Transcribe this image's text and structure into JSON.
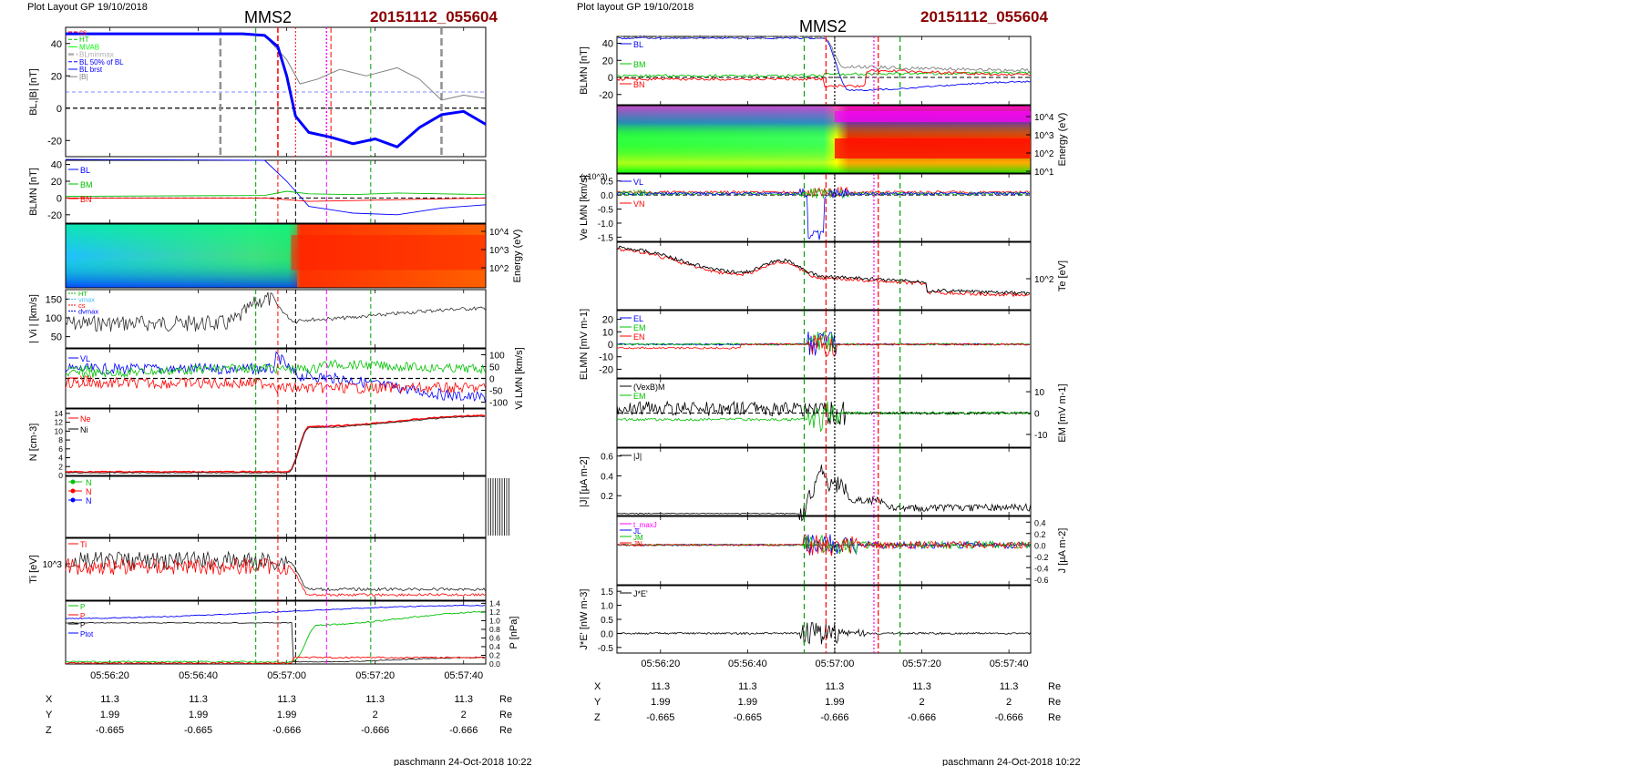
{
  "left": {
    "header": "Plot Layout GP 19/10/2018",
    "spacecraft": "MMS2",
    "event_id": "20151112_055604",
    "footer": "paschmann 24-Oct-2018 10:22",
    "time_ticks": [
      "05:56:20",
      "05:56:40",
      "05:57:00",
      "05:57:20",
      "05:57:40"
    ],
    "ephemeris": [
      {
        "label": "X",
        "values": [
          "11.3",
          "11.3",
          "11.3",
          "11.3",
          "11.3"
        ],
        "unit": "Re"
      },
      {
        "label": "Y",
        "values": [
          "1.99",
          "1.99",
          "1.99",
          "2",
          "2"
        ],
        "unit": "Re"
      },
      {
        "label": "Z",
        "values": [
          "-0.665",
          "-0.665",
          "-0.666",
          "-0.666",
          "-0.666"
        ],
        "unit": "Re"
      }
    ]
  },
  "right": {
    "header": "Plot layout GP 19/10/2018",
    "spacecraft": "MMS2",
    "event_id": "20151112_055604",
    "footer": "paschmann 24-Oct-2018 10:22",
    "time_ticks": [
      "05:56:20",
      "05:56:40",
      "05:57:00",
      "05:57:20",
      "05:57:40"
    ],
    "ephemeris": [
      {
        "label": "X",
        "values": [
          "11.3",
          "11.3",
          "11.3",
          "11.3",
          "11.3"
        ],
        "unit": "Re"
      },
      {
        "label": "Y",
        "values": [
          "1.99",
          "1.99",
          "1.99",
          "2",
          "2"
        ],
        "unit": "Re"
      },
      {
        "label": "Z",
        "values": [
          "-0.665",
          "-0.665",
          "-0.666",
          "-0.666",
          "-0.666"
        ],
        "unit": "Re"
      }
    ]
  },
  "colors": {
    "bl": "#0000ff",
    "bm": "#00c000",
    "bn": "#ff0000",
    "btot": "#000000",
    "title_red": "#8b0000",
    "magenta": "#ff00ff"
  },
  "chart_data": [
    {
      "type": "line",
      "panel": "left-1",
      "ylabel": "BL,|B| [nT]",
      "ylim": [
        -30,
        50
      ],
      "yticks": [
        40,
        20,
        0,
        -20
      ],
      "x_range": [
        "05:56:10",
        "05:57:45"
      ],
      "legend": [
        "cs",
        "HT",
        "MVAB",
        "BLminmax",
        "BL 50% of BL",
        "BL brst",
        "|B|"
      ],
      "series": [
        {
          "name": "BL brst",
          "x": [
            "05:56:10",
            "05:56:50",
            "05:56:55",
            "05:56:58",
            "05:57:00",
            "05:57:02",
            "05:57:05",
            "05:57:10",
            "05:57:15",
            "05:57:20",
            "05:57:25",
            "05:57:30",
            "05:57:35",
            "05:57:40",
            "05:57:45"
          ],
          "values": [
            46,
            46,
            45,
            38,
            20,
            -5,
            -15,
            -18,
            -22,
            -19,
            -24,
            -12,
            -4,
            -2,
            -10
          ]
        },
        {
          "name": "|B|",
          "x": [
            "05:56:10",
            "05:56:50",
            "05:56:55",
            "05:57:00",
            "05:57:03",
            "05:57:07",
            "05:57:12",
            "05:57:18",
            "05:57:25",
            "05:57:30",
            "05:57:35",
            "05:57:40",
            "05:57:45"
          ],
          "values": [
            46,
            46,
            45,
            30,
            15,
            18,
            24,
            20,
            25,
            18,
            5,
            8,
            6
          ]
        }
      ],
      "hlines": [
        10,
        0
      ]
    },
    {
      "type": "line",
      "panel": "left-2",
      "ylabel": "BLMN [nT]",
      "ylim": [
        -30,
        45
      ],
      "yticks": [
        40,
        20,
        0,
        -20
      ],
      "legend": [
        "BL",
        "BM",
        "BN"
      ],
      "series": [
        {
          "name": "BL",
          "x": [
            "05:56:10",
            "05:56:55",
            "05:57:00",
            "05:57:05",
            "05:57:15",
            "05:57:25",
            "05:57:35",
            "05:57:45"
          ],
          "values": [
            46,
            45,
            20,
            -10,
            -18,
            -20,
            -12,
            -8
          ]
        },
        {
          "name": "BM",
          "x": [
            "05:56:10",
            "05:56:55",
            "05:57:00",
            "05:57:05",
            "05:57:15",
            "05:57:25",
            "05:57:35",
            "05:57:45"
          ],
          "values": [
            2,
            3,
            8,
            5,
            4,
            6,
            5,
            4
          ]
        },
        {
          "name": "BN",
          "x": [
            "05:56:10",
            "05:56:55",
            "05:57:00",
            "05:57:05",
            "05:57:15",
            "05:57:25",
            "05:57:35",
            "05:57:45"
          ],
          "values": [
            0,
            0,
            -2,
            -4,
            -3,
            -2,
            -1,
            0
          ]
        }
      ]
    },
    {
      "type": "heatmap",
      "panel": "left-3",
      "ylabel": "Energy (eV)",
      "yticks": [
        "10^2",
        "10^3",
        "10^4"
      ]
    },
    {
      "type": "line",
      "panel": "left-4",
      "ylabel": "| Vi | [km/s]",
      "yticks": [
        150,
        100,
        50
      ],
      "legend": [
        "HT",
        "vmax",
        "cs",
        "dvmax"
      ]
    },
    {
      "type": "line",
      "panel": "left-5",
      "ylabel": "Vi LMN [km/s]",
      "yticks": [
        100,
        50,
        0,
        -50,
        -100
      ],
      "legend": [
        "VL",
        "VM",
        "VN"
      ]
    },
    {
      "type": "line",
      "panel": "left-6",
      "ylabel": "N [cm-3]",
      "yticks": [
        14,
        12,
        10,
        8,
        6,
        4,
        2,
        0
      ],
      "legend": [
        "Ne",
        "Ni"
      ]
    },
    {
      "type": "line",
      "panel": "left-7",
      "legend": [
        "N",
        "N",
        "N"
      ]
    },
    {
      "type": "line",
      "panel": "left-8",
      "ylabel": "Ti [eV]",
      "yticks": [
        "10^3"
      ],
      "legend": [
        "Ti"
      ]
    },
    {
      "type": "line",
      "panel": "left-9",
      "ylabel": "P [nPa]",
      "yticks": [
        1.4,
        1.2,
        1.0,
        0.8,
        0.6,
        0.4,
        0.2,
        0.0
      ],
      "legend": [
        "P",
        "P",
        "P",
        "Ptot"
      ]
    },
    {
      "type": "line",
      "panel": "right-1",
      "ylabel": "BLMN [nT]",
      "yticks": [
        40,
        20,
        0,
        -20
      ],
      "legend": [
        "BL",
        "BM",
        "BN"
      ]
    },
    {
      "type": "heatmap",
      "panel": "right-2",
      "ylabel": "Energy (eV)",
      "yticks": [
        "10^1",
        "10^2",
        "10^3",
        "10^4"
      ]
    },
    {
      "type": "line",
      "panel": "right-3",
      "ylabel": "Ve LMN [km/s]",
      "scale_note": "(x10^3)",
      "yticks": [
        0.5,
        0.0,
        -0.5,
        -1.0,
        -1.5
      ],
      "legend": [
        "VL",
        "VM",
        "VN"
      ]
    },
    {
      "type": "line",
      "panel": "right-4",
      "ylabel": "Te [eV]",
      "yticks": [
        "10^2"
      ]
    },
    {
      "type": "line",
      "panel": "right-5",
      "ylabel": "ELMN [mV m-1]",
      "yticks": [
        20,
        10,
        0,
        -10,
        -20
      ],
      "legend": [
        "EL",
        "EM",
        "EN"
      ]
    },
    {
      "type": "line",
      "panel": "right-6",
      "ylabel": "EM [mV m-1]",
      "yticks": [
        10,
        0,
        -10
      ],
      "legend": [
        "(VexB)M",
        "EM"
      ]
    },
    {
      "type": "line",
      "panel": "right-7",
      "ylabel": "|J| [µA m-2]",
      "yticks": [
        0.6,
        0.4,
        0.2
      ],
      "legend": [
        "|J|"
      ]
    },
    {
      "type": "line",
      "panel": "right-8",
      "ylabel": "J [µA m-2]",
      "yticks": [
        0.4,
        0.2,
        0.0,
        -0.2,
        -0.4,
        -0.6
      ],
      "legend": [
        "t_maxJ",
        "JL",
        "JM",
        "JN"
      ]
    },
    {
      "type": "line",
      "panel": "right-9",
      "ylabel": "J*E' [nW m-3]",
      "yticks": [
        1.5,
        1.0,
        0.5,
        0.0,
        -0.5
      ],
      "legend": [
        "J*E'"
      ]
    }
  ]
}
